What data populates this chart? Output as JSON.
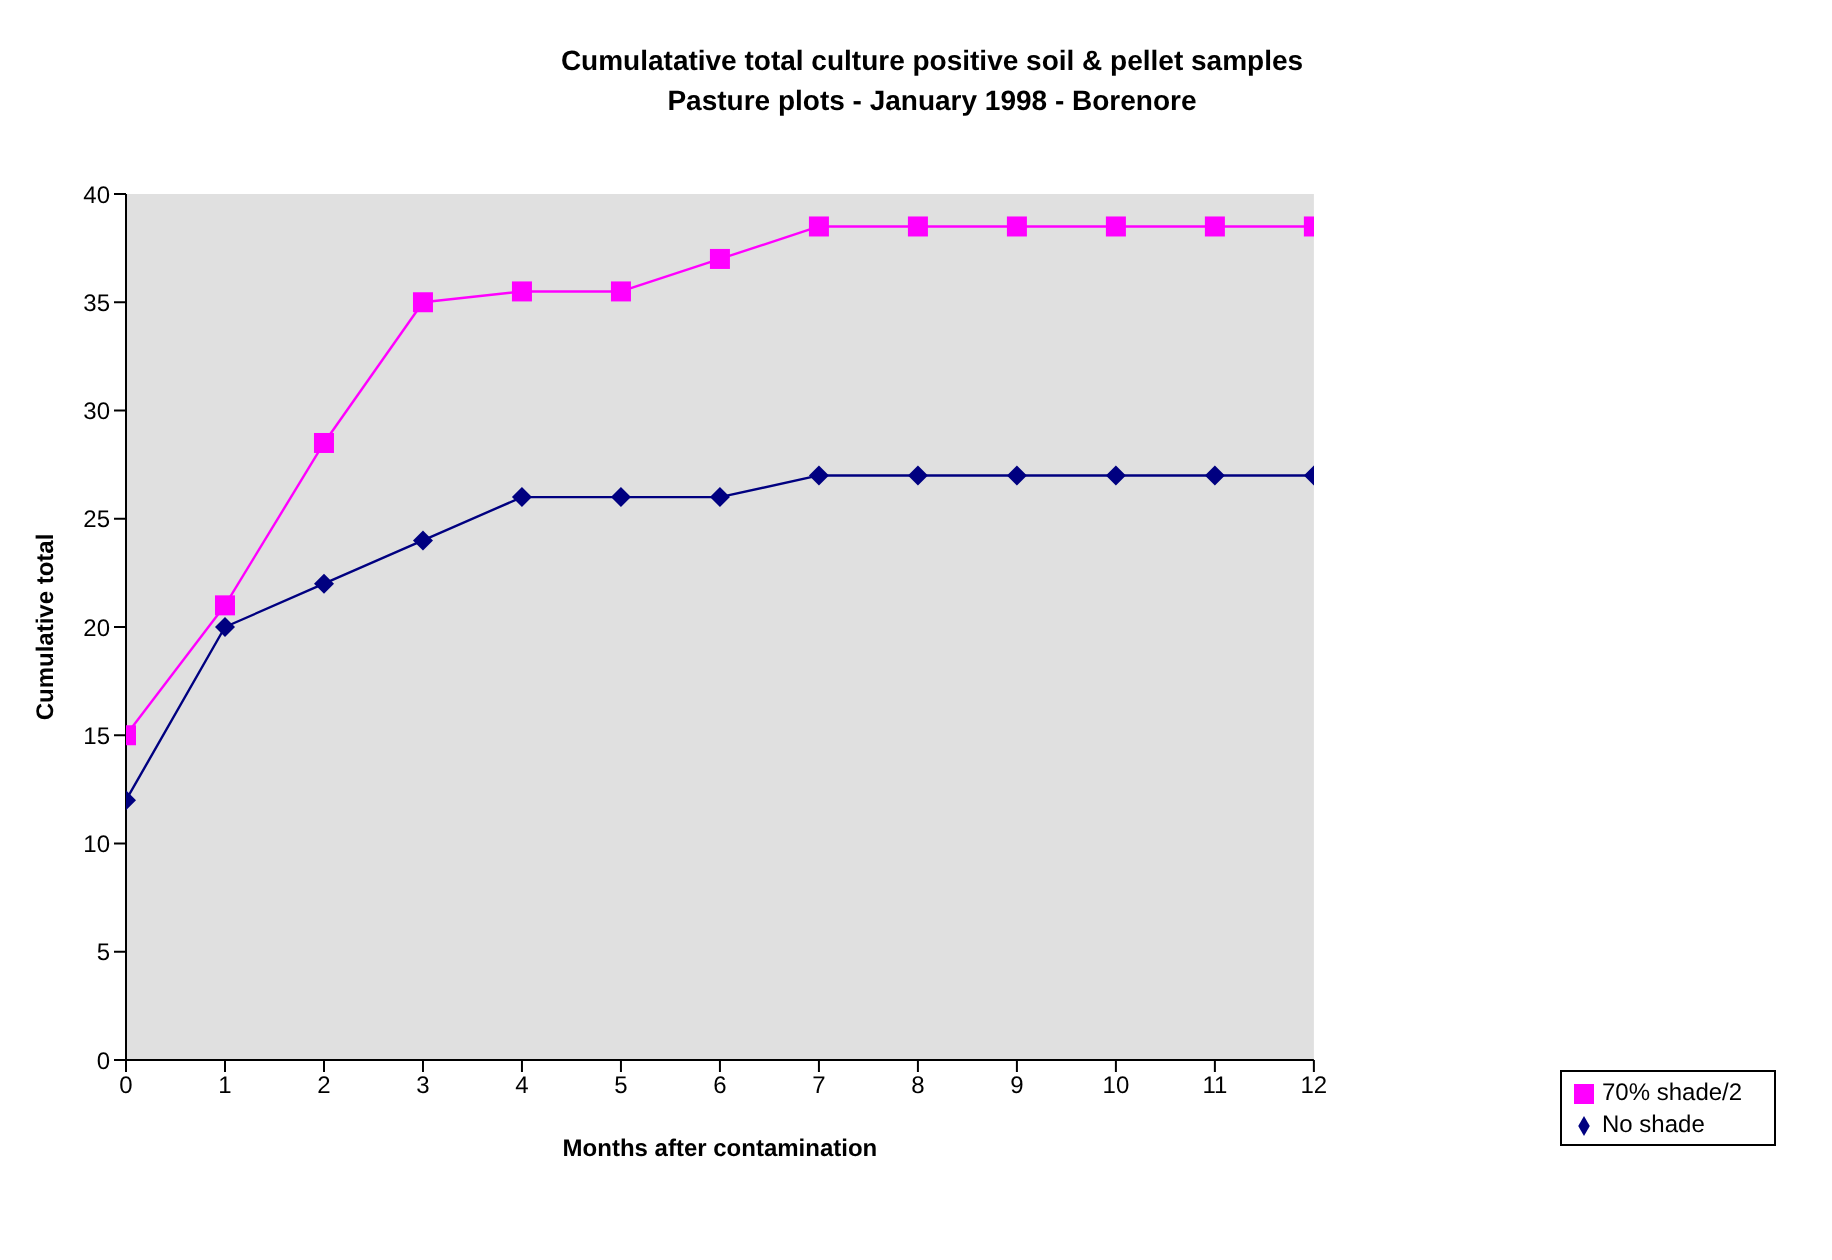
{
  "chart_data": {
    "type": "line",
    "title": "Cumulatative total culture positive soil & pellet samples",
    "subtitle": "Pasture plots - January 1998 - Borenore",
    "xlabel": "Months after contamination",
    "ylabel": "Cumulative total",
    "x": [
      0,
      1,
      2,
      3,
      4,
      5,
      6,
      7,
      8,
      9,
      10,
      11,
      12
    ],
    "xlim": [
      0,
      12
    ],
    "xticks": [
      0,
      1,
      2,
      3,
      4,
      5,
      6,
      7,
      8,
      9,
      10,
      11,
      12
    ],
    "ylim": [
      0,
      40
    ],
    "yticks": [
      0,
      5,
      10,
      15,
      20,
      25,
      30,
      35,
      40
    ],
    "series": [
      {
        "name": "70% shade/2",
        "color": "#ff00ff",
        "marker": "square",
        "values": [
          15,
          21,
          28.5,
          35,
          35.5,
          35.5,
          37,
          38.5,
          38.5,
          38.5,
          38.5,
          38.5,
          38.5
        ]
      },
      {
        "name": "No shade",
        "color": "#000080",
        "marker": "diamond",
        "values": [
          12,
          20,
          22,
          24,
          26,
          26,
          26,
          27,
          27,
          27,
          27,
          27,
          27
        ]
      }
    ],
    "grid": false,
    "legend": "bottom right"
  }
}
